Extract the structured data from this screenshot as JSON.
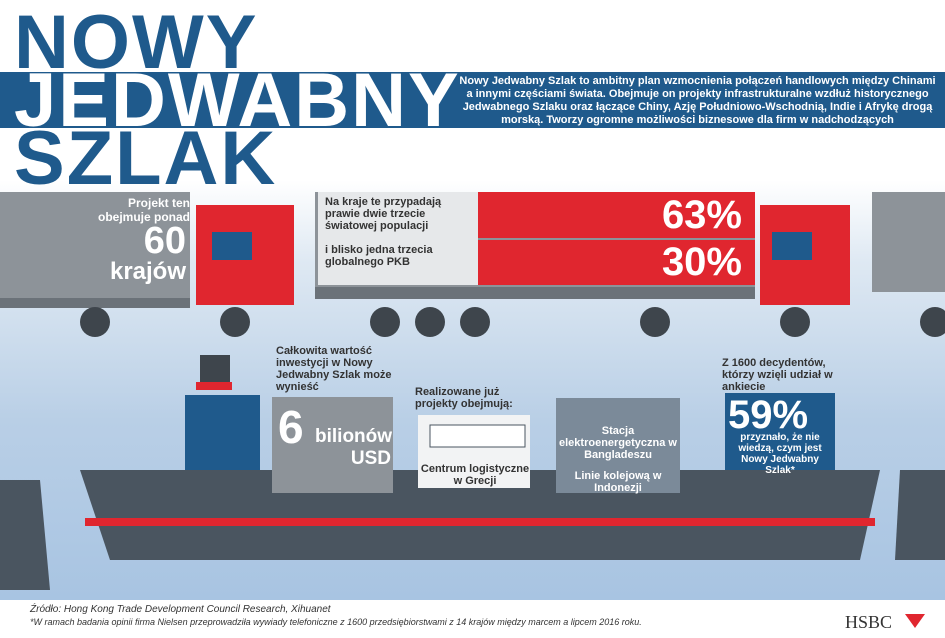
{
  "title": {
    "lines": [
      "NOWY",
      "JEDWABNY",
      "SZLAK"
    ]
  },
  "intro": "Nowy Jedwabny Szlak to ambitny plan wzmocnienia połączeń handlowych między Chinami a innymi częściami świata. Obejmuje on projekty infrastrukturalne wzdłuż historycznego Jedwabnego Szlaku oraz łączące Chiny, Azję Południowo-Wschodnią, Indie i Afrykę drogą morską. Tworzy ogromne możliwości biznesowe dla firm w nadchodzących dziesięcioleciach.",
  "countries": {
    "text": "Projekt ten obejmuje ponad",
    "number": "60",
    "unit": "krajów"
  },
  "population": {
    "text": "Na kraje te przypadają prawie dwie trzecie światowej populacji",
    "number": "63%"
  },
  "gdp": {
    "text": "i blisko jedna trzecia globalnego PKB",
    "number": "30%"
  },
  "investment": {
    "text": "Całkowita wartość inwestycji w Nowy Jedwabny Szlak może wynieść",
    "number": "6",
    "unit": "bilionów USD"
  },
  "projects": {
    "heading": "Realizowane już projekty obejmują:",
    "items": [
      "Centrum logistyczne w Grecji",
      "Stacja elektroenergetyczna w Bangladeszu",
      "Linie kolejową w Indonezji"
    ]
  },
  "survey": {
    "text": "Z 1600 decydentów, którzy wzięli udział w ankiecie",
    "number": "59%",
    "detail": "przyznało, że nie wiedzą, czym jest Nowy Jedwabny Szlak*"
  },
  "footer": {
    "source": "Źródło: Hong Kong Trade Development Council Research, Xihuanet",
    "note": "*W ramach badania opinii firma Nielsen przeprowadziła wywiady telefoniczne z 1600 przedsiębiorstwami z 14 krajów między marcem a lipcem 2016 roku.",
    "brand": "HSBC"
  }
}
